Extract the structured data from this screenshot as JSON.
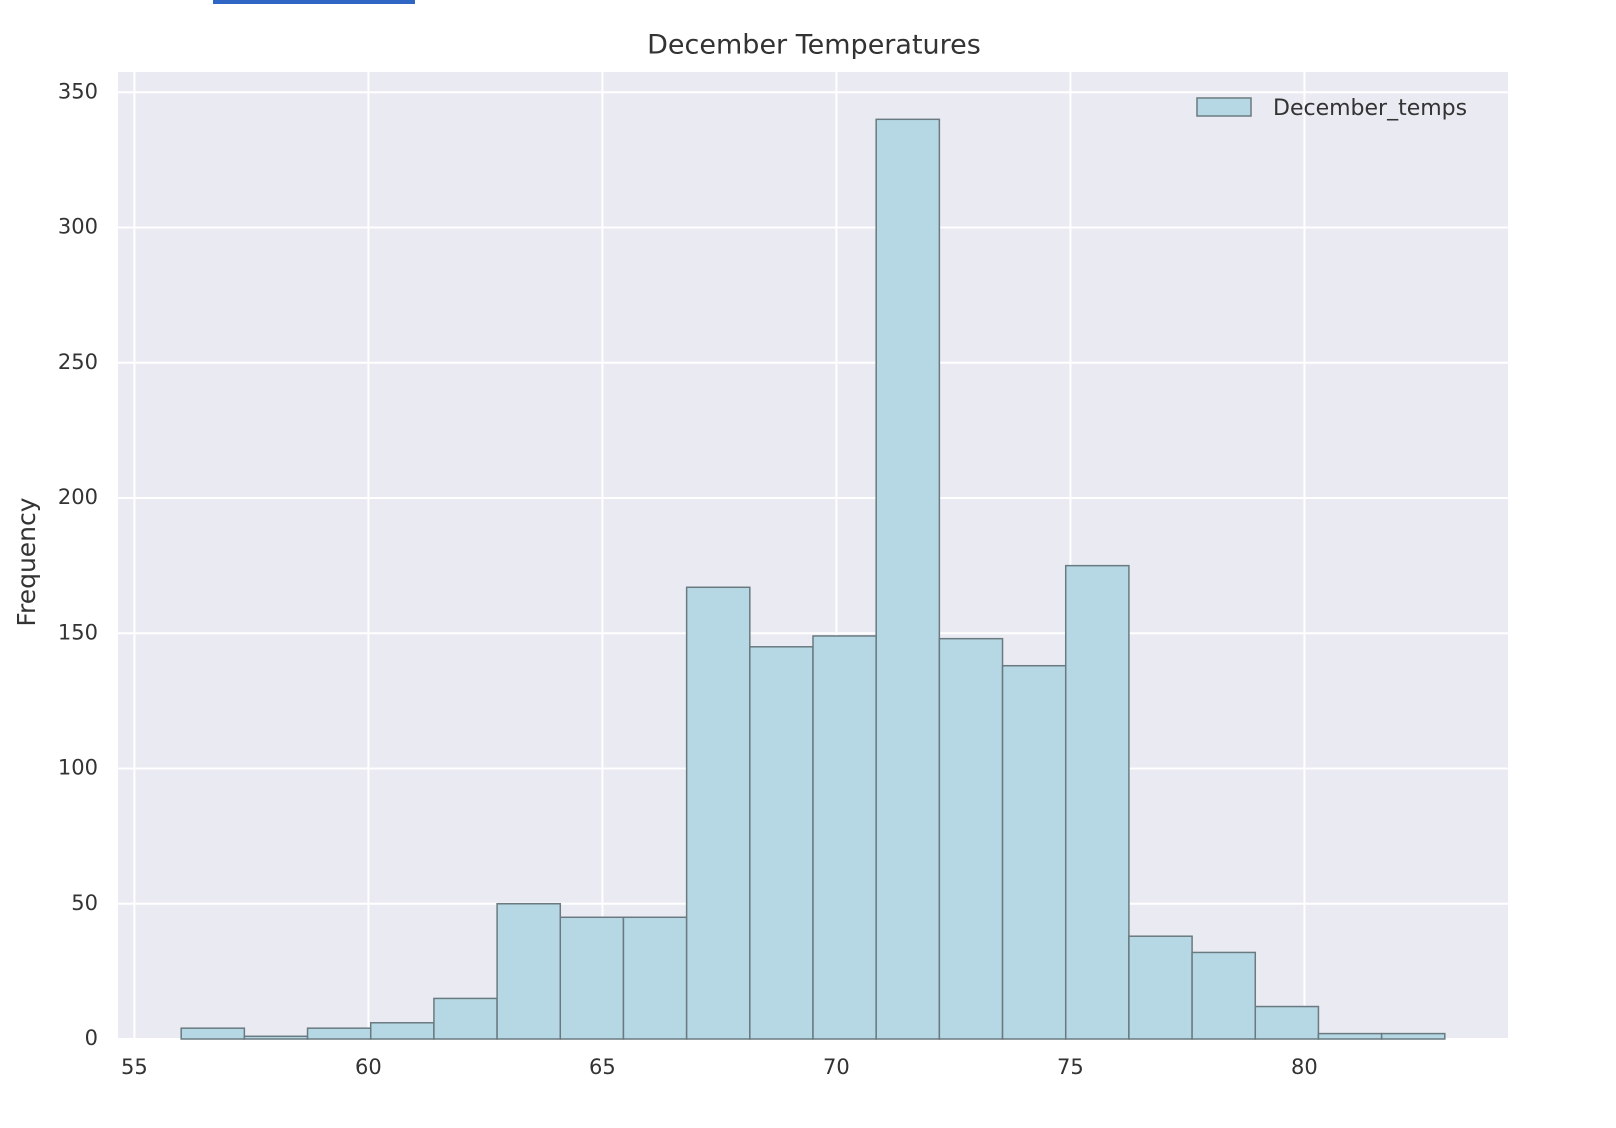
{
  "chart_data": {
    "type": "histogram",
    "title": "December Temperatures",
    "y_label": "Frequency",
    "bins": [
      56,
      57.35,
      58.7,
      60.05,
      61.4,
      62.75,
      64.1,
      65.45,
      66.8,
      68.15,
      69.5,
      70.85,
      72.2,
      73.55,
      74.9,
      76.25,
      77.6,
      78.95,
      80.3,
      81.65,
      83
    ],
    "series": [
      {
        "name": "December_temps",
        "color": "#b6d8e4",
        "values": [
          4,
          1,
          4,
          6,
          15,
          50,
          45,
          45,
          167,
          145,
          149,
          340,
          148,
          138,
          175,
          38,
          32,
          12,
          2,
          2
        ]
      }
    ],
    "xlim": [
      54.65,
      84.35
    ],
    "ylim": [
      0,
      357.5
    ],
    "xticks": [
      55,
      60,
      65,
      70,
      75,
      80
    ],
    "yticks": [
      0,
      50,
      100,
      150,
      200,
      250,
      300,
      350
    ],
    "grid": true,
    "legend": "upper right"
  }
}
